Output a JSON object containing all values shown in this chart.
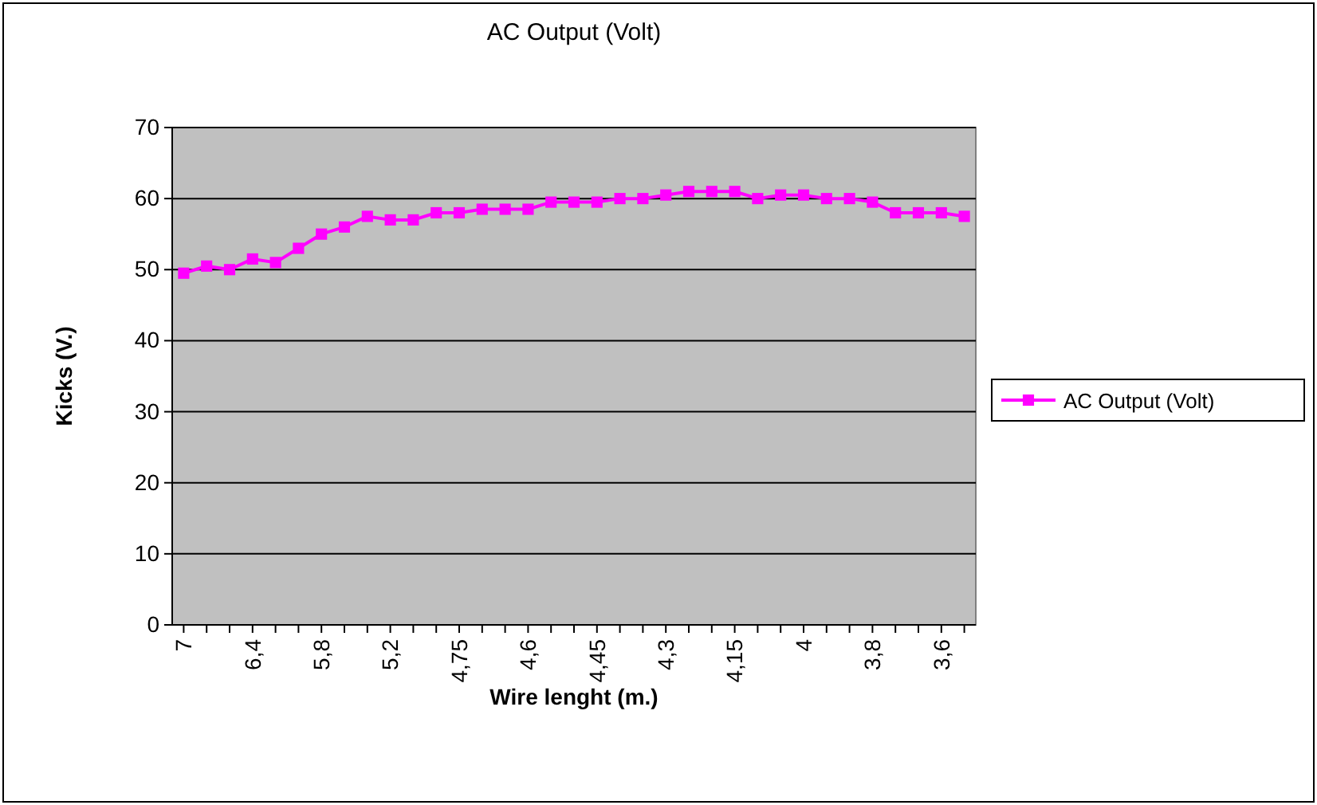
{
  "chart_data": {
    "type": "line",
    "title": "AC Output (Volt)",
    "xlabel": "Wire lenght (m.)",
    "ylabel": "Kicks (V.)",
    "categories": [
      "7",
      null,
      null,
      "6,4",
      null,
      null,
      "5,8",
      null,
      null,
      "5,2",
      null,
      null,
      "4,75",
      null,
      null,
      "4,6",
      null,
      null,
      "4,45",
      null,
      null,
      "4,3",
      null,
      null,
      "4,15",
      null,
      null,
      "4",
      null,
      null,
      "3,8",
      null,
      null,
      "3,6",
      null
    ],
    "series": [
      {
        "name": "AC Output (Volt)",
        "color": "#ff00ff",
        "values": [
          49.5,
          50.5,
          50,
          51.5,
          51,
          53,
          55,
          56,
          57.5,
          57,
          57,
          58,
          58,
          58.5,
          58.5,
          58.5,
          59.5,
          59.5,
          59.5,
          60,
          60,
          60.5,
          61,
          61,
          61,
          60,
          60.5,
          60.5,
          60,
          60,
          59.5,
          58,
          58,
          58,
          57.5
        ]
      }
    ],
    "ylim": [
      0,
      70
    ],
    "yticks": [
      0,
      10,
      20,
      30,
      40,
      50,
      60,
      70
    ],
    "grid": "y",
    "legend": "right",
    "marker": "square",
    "line_style": "solid"
  }
}
